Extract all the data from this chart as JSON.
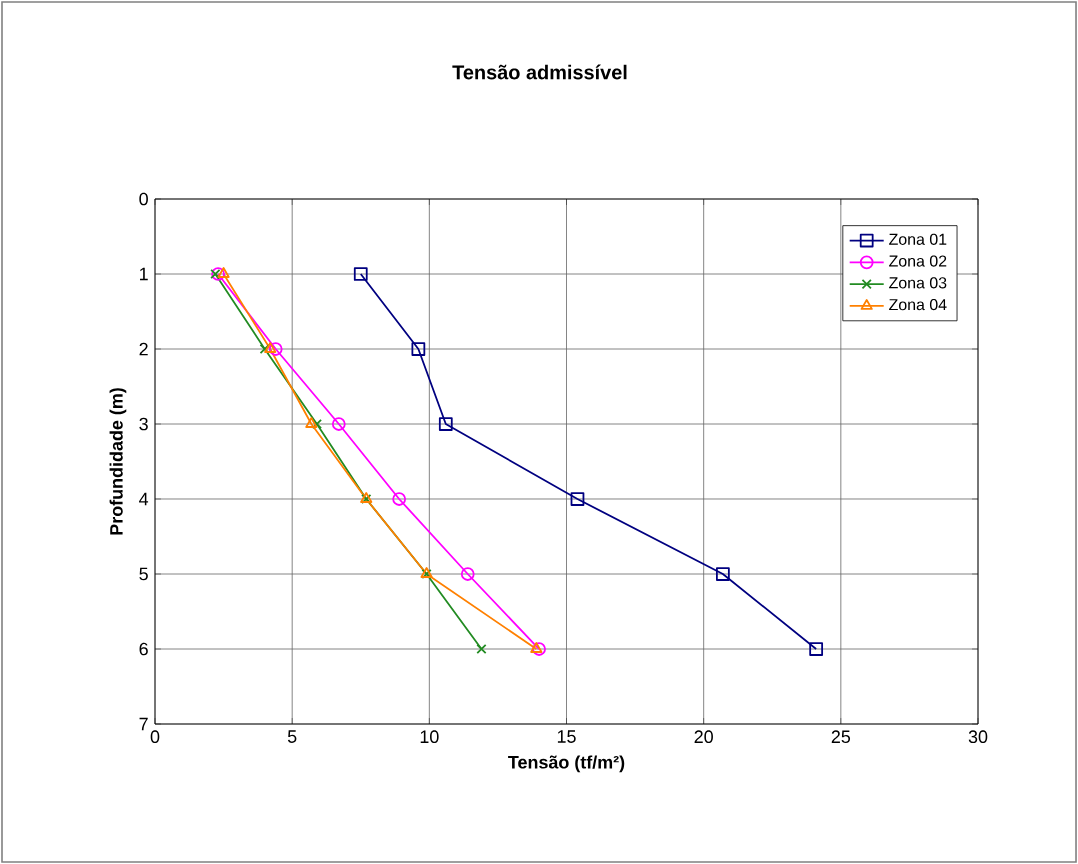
{
  "chart_data": {
    "type": "line",
    "title": "Tensão admissível",
    "xlabel": "Tensão (tf/m²)",
    "ylabel": "Profundidade (m)",
    "xlim": [
      0,
      30
    ],
    "xticks": [
      0,
      5,
      10,
      15,
      20,
      25,
      30
    ],
    "ylim": [
      7,
      0
    ],
    "yticks": [
      0,
      1,
      2,
      3,
      4,
      5,
      6,
      7
    ],
    "grid": true,
    "legend": "top right",
    "line_style": "solid",
    "series": [
      {
        "name": "Zona 01",
        "color": "#000080",
        "marker": "square",
        "x": [
          7.5,
          9.6,
          10.6,
          15.4,
          20.7,
          24.1
        ],
        "values": [
          1,
          2,
          3,
          4,
          5,
          6
        ]
      },
      {
        "name": "Zona 02",
        "color": "#ff00ff",
        "marker": "circle",
        "x": [
          2.3,
          4.4,
          6.7,
          8.9,
          11.4,
          14.0
        ],
        "values": [
          1,
          2,
          3,
          4,
          5,
          6
        ]
      },
      {
        "name": "Zona 03",
        "color": "#228b22",
        "marker": "cross",
        "x": [
          2.2,
          4.0,
          5.9,
          7.7,
          9.9,
          11.9
        ],
        "values": [
          1,
          2,
          3,
          4,
          5,
          6
        ]
      },
      {
        "name": "Zona 04",
        "color": "#ff8000",
        "marker": "triangle",
        "x": [
          2.5,
          4.2,
          5.7,
          7.7,
          9.9,
          13.9
        ],
        "values": [
          1,
          2,
          3,
          4,
          5,
          6
        ]
      }
    ]
  }
}
